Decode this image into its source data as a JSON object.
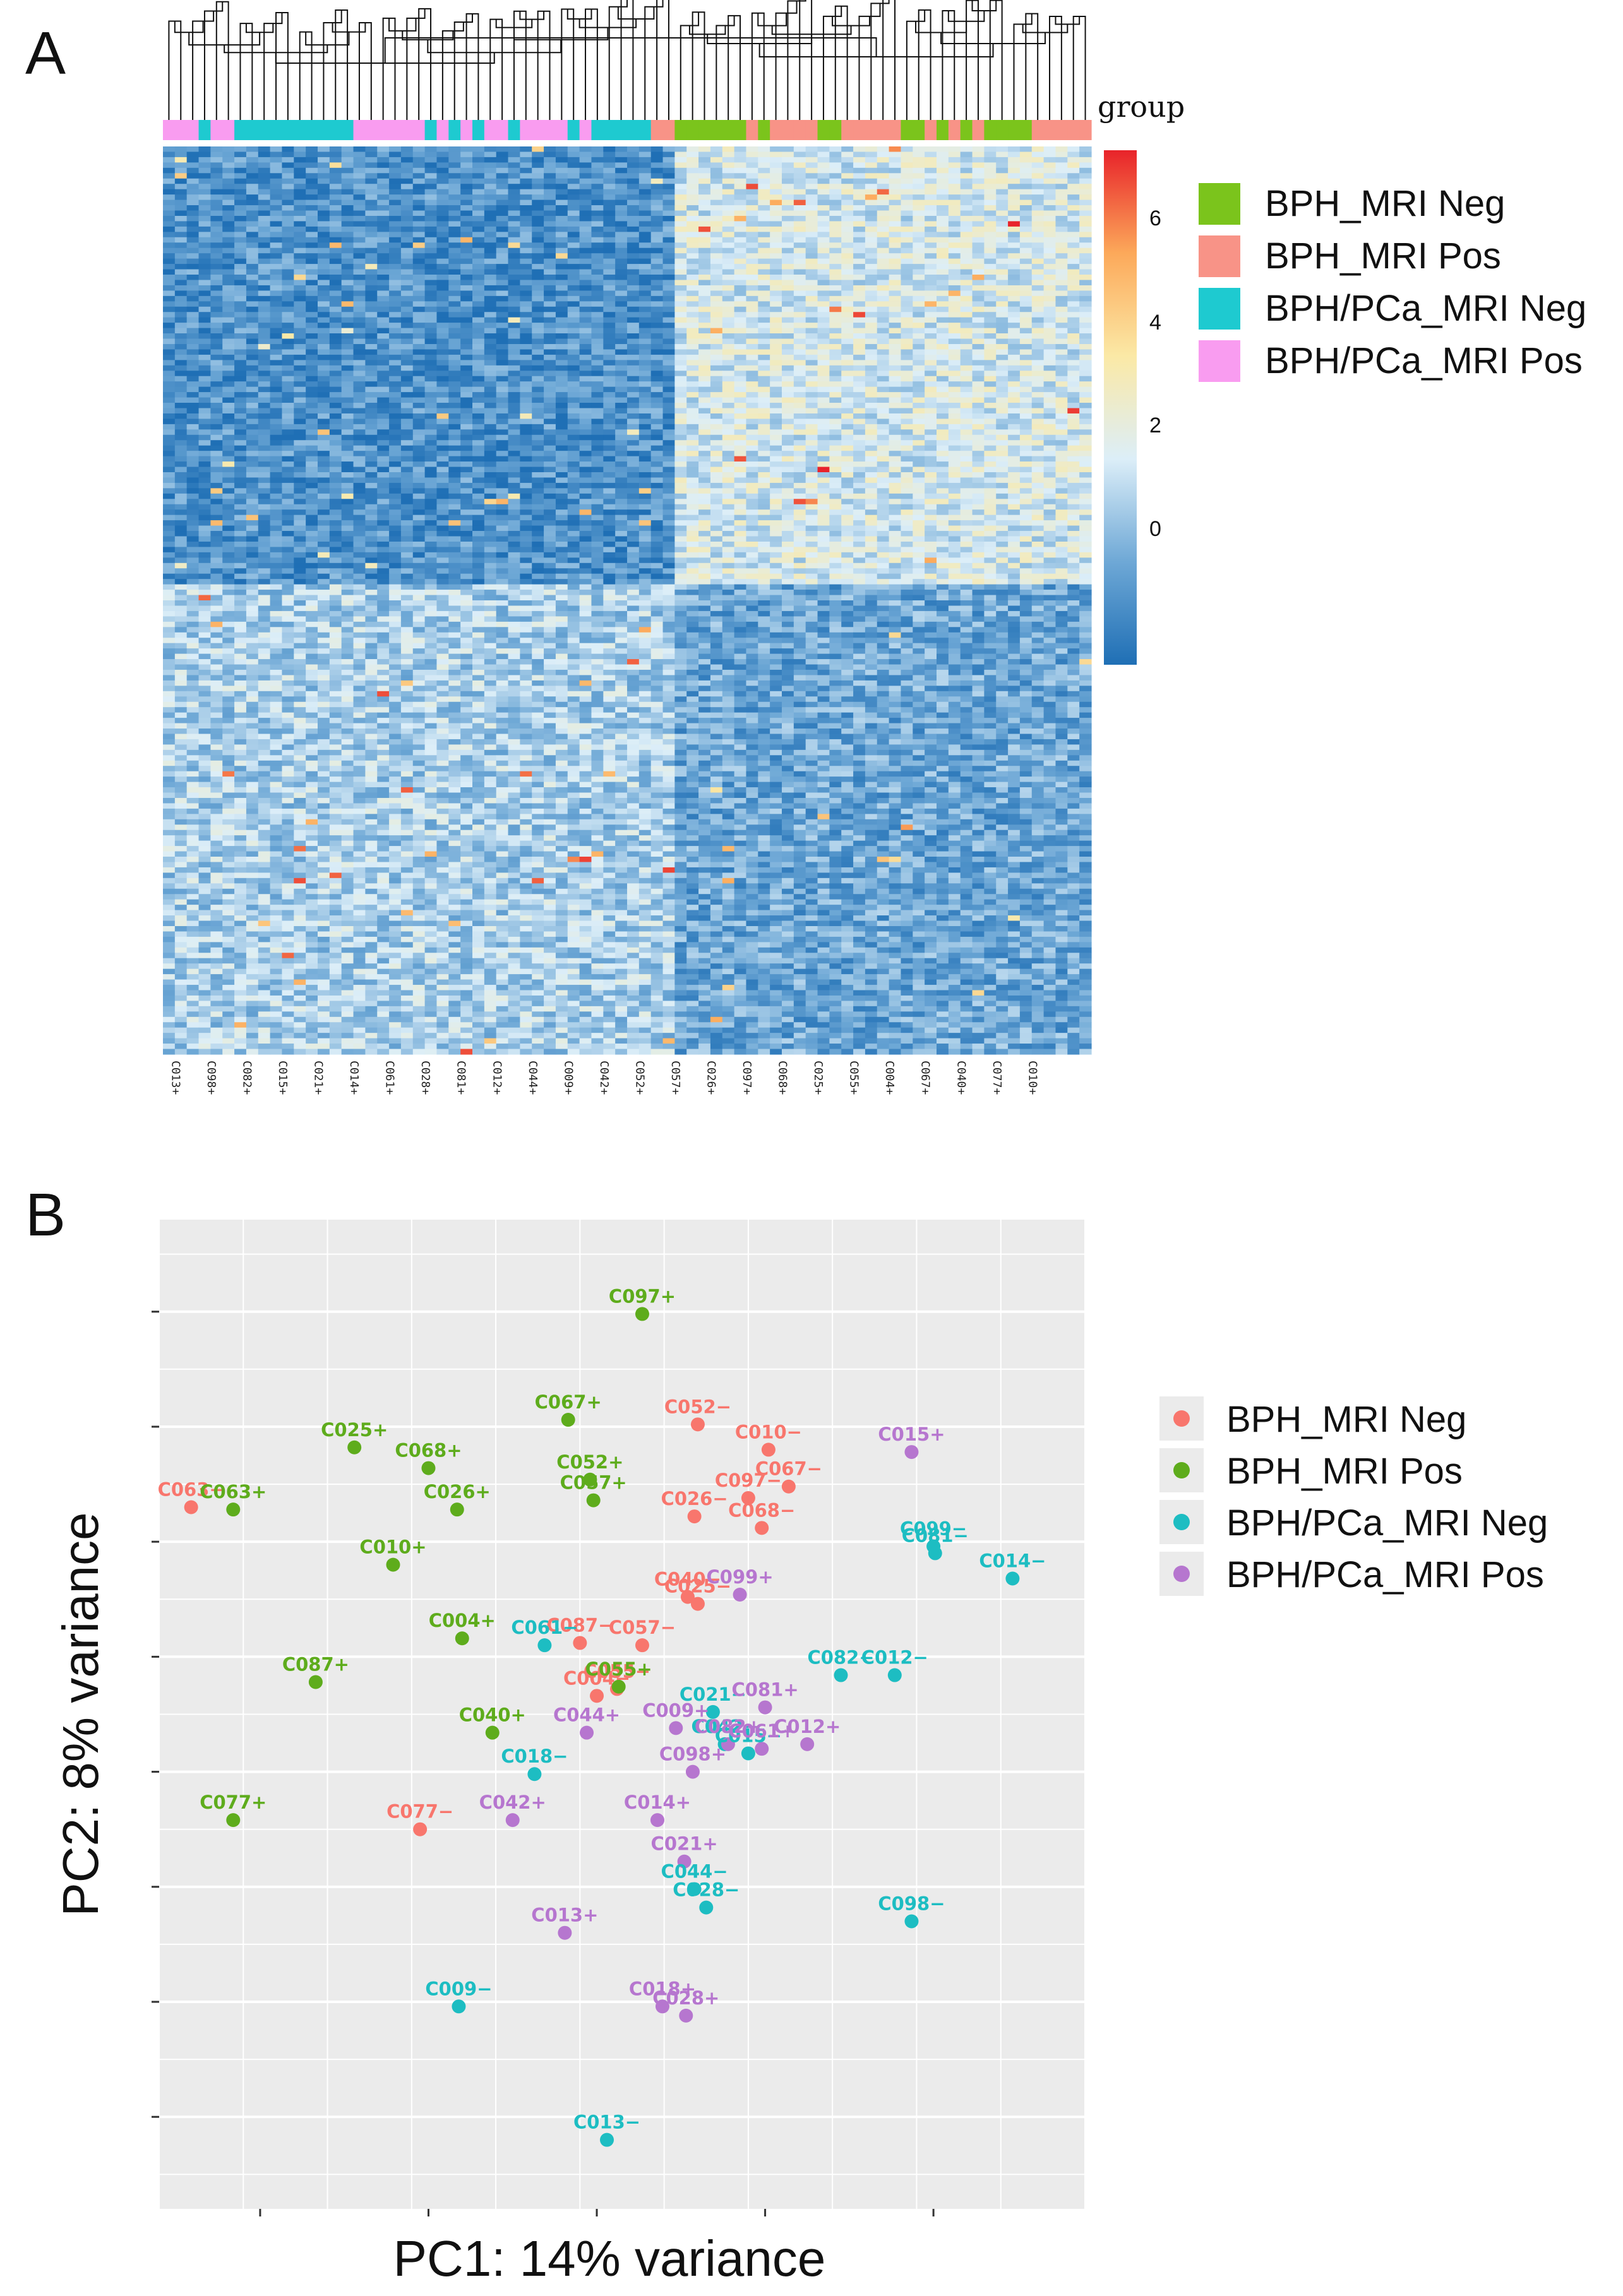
{
  "panel_a_letter": "A",
  "panel_b_letter": "B",
  "chart_data": [
    {
      "type": "heatmap",
      "annotation_title": "group",
      "color_scale": {
        "ticks": [
          "6",
          "4",
          "2",
          "0"
        ],
        "colors": [
          "#1f6fb5",
          "#6ea8d6",
          "#dceef8",
          "#fbe9a6",
          "#fca95a",
          "#e8232a"
        ]
      },
      "legend": [
        {
          "name": "BPH_MRI Neg",
          "color": "#7bc41c"
        },
        {
          "name": "BPH_MRI Pos",
          "color": "#f89387"
        },
        {
          "name": "BPH/PCa_MRI Neg",
          "color": "#1ecad0"
        },
        {
          "name": "BPH/PCa_MRI Pos",
          "color": "#f99cf0"
        }
      ],
      "group_colors": [
        "#7bc41c",
        "#f89387",
        "#1ecad0",
        "#f99cf0"
      ],
      "column_groups": [
        3,
        3,
        3,
        2,
        3,
        3,
        2,
        2,
        2,
        2,
        2,
        2,
        2,
        2,
        2,
        2,
        3,
        3,
        3,
        3,
        3,
        3,
        2,
        3,
        2,
        3,
        2,
        3,
        3,
        2,
        3,
        3,
        3,
        3,
        2,
        3,
        2,
        2,
        2,
        2,
        2,
        1,
        1,
        0,
        0,
        0,
        0,
        0,
        0,
        1,
        0,
        1,
        1,
        1,
        1,
        0,
        0,
        1,
        1,
        1,
        1,
        1,
        0,
        0,
        1,
        0,
        1,
        0,
        1,
        0,
        0,
        0,
        0,
        1,
        1,
        1,
        1,
        1
      ],
      "column_labels": [
        "C013+",
        "C098+",
        "C082+",
        "C015+",
        "C021+",
        "C014+",
        "C061+",
        "C028+",
        "C081+",
        "C012+",
        "C044+",
        "C009+",
        "C042+",
        "C052+",
        "C057+",
        "C026+",
        "C097+",
        "C068+",
        "C025+",
        "C055+",
        "C004+",
        "C067+",
        "C040+",
        "C077+",
        "C010+"
      ]
    },
    {
      "type": "scatter",
      "xlabel": "PC1: 14% variance",
      "ylabel": "PC2: 8% variance",
      "xlim": [
        -46,
        9
      ],
      "ylim": [
        -24,
        19
      ],
      "legend": [
        {
          "name": "BPH_MRI Neg",
          "color": "#f8766d"
        },
        {
          "name": "BPH_MRI Pos",
          "color": "#5eac1c"
        },
        {
          "name": "BPH/PCa_MRI Neg",
          "color": "#1dbdc2"
        },
        {
          "name": "BPH/PCa_MRI Pos",
          "color": "#b676cf"
        }
      ],
      "series": [
        {
          "name": "BPH_MRI Neg",
          "points": [
            {
              "label": "C063−",
              "x": -44.1,
              "y": 6.5
            },
            {
              "label": "C052−",
              "x": -14.0,
              "y": 10.1
            },
            {
              "label": "C010−",
              "x": -9.8,
              "y": 9.0
            },
            {
              "label": "C067−",
              "x": -8.6,
              "y": 7.4
            },
            {
              "label": "C097−",
              "x": -11.0,
              "y": 6.9
            },
            {
              "label": "C026−",
              "x": -14.2,
              "y": 6.1
            },
            {
              "label": "C068−",
              "x": -10.2,
              "y": 5.6
            },
            {
              "label": "C040−",
              "x": -14.6,
              "y": 2.6
            },
            {
              "label": "C025−",
              "x": -14.0,
              "y": 2.3
            },
            {
              "label": "C087−",
              "x": -21.0,
              "y": 0.6
            },
            {
              "label": "C057−",
              "x": -17.3,
              "y": 0.5
            },
            {
              "label": "C055−",
              "x": -18.8,
              "y": -1.4
            },
            {
              "label": "C004−",
              "x": -20.0,
              "y": -1.7
            },
            {
              "label": "C077−",
              "x": -30.5,
              "y": -7.5
            }
          ]
        },
        {
          "name": "BPH_MRI Pos",
          "points": [
            {
              "label": "C097+",
              "x": -17.3,
              "y": 14.9
            },
            {
              "label": "C067+",
              "x": -21.7,
              "y": 10.3
            },
            {
              "label": "C025+",
              "x": -34.4,
              "y": 9.1
            },
            {
              "label": "C068+",
              "x": -30.0,
              "y": 8.2
            },
            {
              "label": "C052+",
              "x": -20.4,
              "y": 7.7
            },
            {
              "label": "C057+",
              "x": -20.2,
              "y": 6.8
            },
            {
              "label": "C026+",
              "x": -28.3,
              "y": 6.4
            },
            {
              "label": "C063+",
              "x": -41.6,
              "y": 6.4
            },
            {
              "label": "C010+",
              "x": -32.1,
              "y": 4.0
            },
            {
              "label": "C004+",
              "x": -28.0,
              "y": 0.8
            },
            {
              "label": "C087+",
              "x": -36.7,
              "y": -1.1
            },
            {
              "label": "C055+",
              "x": -18.7,
              "y": -1.3
            },
            {
              "label": "C040+",
              "x": -26.2,
              "y": -3.3
            },
            {
              "label": "C077+",
              "x": -41.6,
              "y": -7.1
            }
          ]
        },
        {
          "name": "BPH/PCa_MRI Neg",
          "points": [
            {
              "label": "C099−",
              "x": 0.0,
              "y": 4.8
            },
            {
              "label": "C081−",
              "x": 0.1,
              "y": 4.5
            },
            {
              "label": "C014−",
              "x": 4.7,
              "y": 3.4
            },
            {
              "label": "C061−",
              "x": -23.1,
              "y": 0.5
            },
            {
              "label": "C082−",
              "x": -5.5,
              "y": -0.8
            },
            {
              "label": "C012−",
              "x": -2.3,
              "y": -0.8
            },
            {
              "label": "C021−",
              "x": -13.1,
              "y": -2.4
            },
            {
              "label": "C042−",
              "x": -12.4,
              "y": -3.8
            },
            {
              "label": "C015−",
              "x": -11.0,
              "y": -4.2
            },
            {
              "label": "C018−",
              "x": -23.7,
              "y": -5.1
            },
            {
              "label": "C098−",
              "x": -1.3,
              "y": -11.5
            },
            {
              "label": "C044−",
              "x": -14.2,
              "y": -10.1
            },
            {
              "label": "C028−",
              "x": -13.5,
              "y": -10.9
            },
            {
              "label": "C009−",
              "x": -28.2,
              "y": -15.2
            },
            {
              "label": "C013−",
              "x": -19.4,
              "y": -21.0
            }
          ]
        },
        {
          "name": "BPH/PCa_MRI Pos",
          "points": [
            {
              "label": "C015+",
              "x": -1.3,
              "y": 8.9
            },
            {
              "label": "C099+",
              "x": -11.5,
              "y": 2.7
            },
            {
              "label": "C081+",
              "x": -10.0,
              "y": -2.2
            },
            {
              "label": "C009+",
              "x": -15.3,
              "y": -3.1
            },
            {
              "label": "C044+",
              "x": -20.6,
              "y": -3.3
            },
            {
              "label": "C012+",
              "x": -7.5,
              "y": -3.8
            },
            {
              "label": "C082+",
              "x": -12.2,
              "y": -3.8
            },
            {
              "label": "C061+",
              "x": -10.2,
              "y": -4.0
            },
            {
              "label": "C098+",
              "x": -14.3,
              "y": -5.0
            },
            {
              "label": "C042+",
              "x": -25.0,
              "y": -7.1
            },
            {
              "label": "C014+",
              "x": -16.4,
              "y": -7.1
            },
            {
              "label": "C021+",
              "x": -14.8,
              "y": -8.9
            },
            {
              "label": "C013+",
              "x": -21.9,
              "y": -12.0
            },
            {
              "label": "C018+",
              "x": -16.1,
              "y": -15.2
            },
            {
              "label": "C028+",
              "x": -14.7,
              "y": -15.6
            }
          ]
        }
      ]
    }
  ]
}
